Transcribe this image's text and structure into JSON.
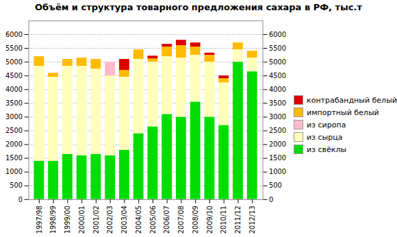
{
  "chart_data": {
    "type": "bar",
    "stacked": true,
    "title": "Объём и структура товарного предложения сахара в РФ, тыс.т",
    "categories": [
      "1997/98",
      "1998/99",
      "1999/00",
      "2000/01",
      "2001/02",
      "2002/03",
      "2003/04",
      "2004/05",
      "2005/06",
      "2006/07",
      "2007/08",
      "2008/09",
      "2009/10",
      "2010/11",
      "2011/12",
      "2012/13"
    ],
    "series": [
      {
        "name": "из свёклы",
        "color": "#00dd00",
        "values": [
          1400,
          1400,
          1650,
          1600,
          1650,
          1600,
          1800,
          2400,
          2650,
          3100,
          3000,
          3550,
          3000,
          2700,
          5000,
          4650
        ]
      },
      {
        "name": "из сырца",
        "color": "#ffffbb",
        "values": [
          3450,
          3050,
          3200,
          3250,
          3100,
          2900,
          2650,
          2700,
          2350,
          2100,
          2150,
          1700,
          2000,
          1550,
          450,
          500
        ]
      },
      {
        "name": "из сиропа",
        "color": "#ffbbcc",
        "values": [
          0,
          0,
          0,
          0,
          0,
          500,
          0,
          0,
          0,
          0,
          0,
          0,
          0,
          0,
          0,
          0
        ]
      },
      {
        "name": "импортный белый",
        "color": "#ffbb00",
        "values": [
          350,
          150,
          250,
          300,
          350,
          0,
          250,
          350,
          120,
          350,
          450,
          300,
          250,
          150,
          250,
          250
        ]
      },
      {
        "name": "контрабандный белый",
        "color": "#dd0000",
        "values": [
          0,
          0,
          0,
          0,
          0,
          0,
          400,
          0,
          100,
          100,
          200,
          150,
          80,
          100,
          0,
          0
        ]
      }
    ],
    "ylim": [
      0,
      6500
    ],
    "yticks": [
      0,
      500,
      1000,
      1500,
      2000,
      2500,
      3000,
      3500,
      4000,
      4500,
      5000,
      5500,
      6000
    ],
    "grid": true,
    "legend": "right"
  }
}
